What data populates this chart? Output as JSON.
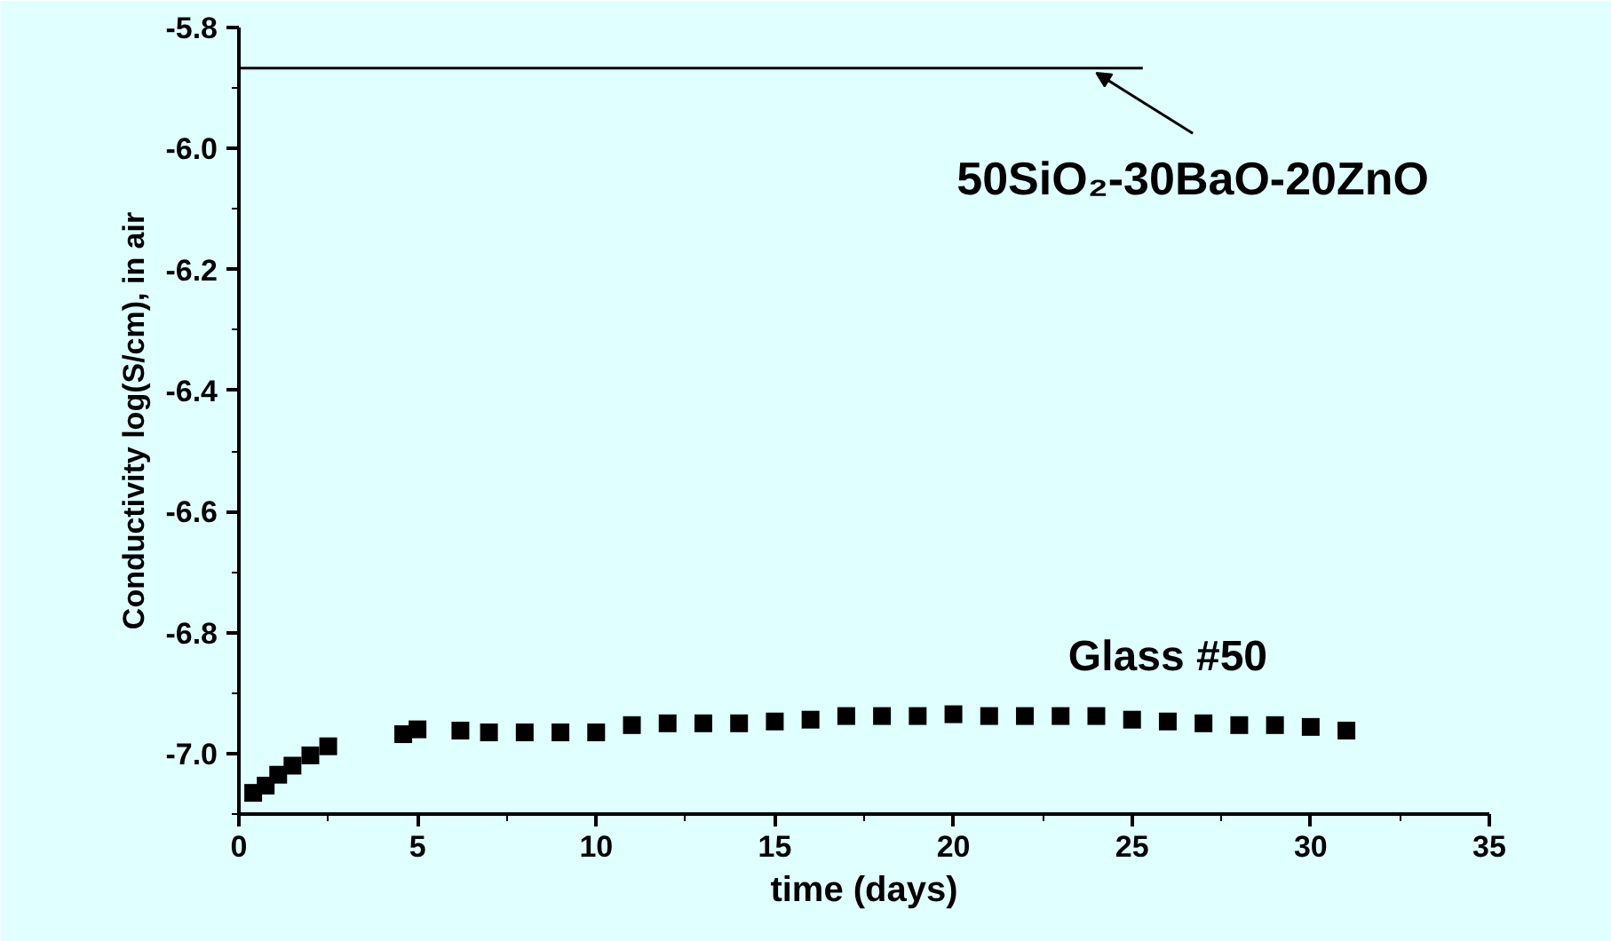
{
  "chart_data": {
    "type": "scatter",
    "xlabel": "time (days)",
    "ylabel": "Conductivity log(S/cm), in air",
    "xlim": [
      0,
      35
    ],
    "xticks": [
      0,
      5,
      10,
      15,
      20,
      25,
      30,
      35
    ],
    "ylim": [
      -7.1,
      -5.8
    ],
    "yticks": [
      {
        "value": -7.0,
        "label": "-7.0"
      },
      -6.8,
      -6.6,
      -6.4,
      -6.2,
      {
        "value": -6.0,
        "label": "-6.0"
      },
      -5.8
    ],
    "grid": false,
    "series": [
      {
        "color": "#000000",
        "marker": "square",
        "x": [
          0.4,
          0.75,
          1.1,
          1.5,
          2.0,
          2.5,
          4.6,
          5.0,
          6.2,
          7,
          8,
          9,
          10,
          11,
          12,
          13,
          14,
          15,
          16,
          17,
          18,
          19,
          20,
          21,
          22,
          23,
          24,
          25,
          26,
          27,
          28,
          29,
          30,
          31
        ],
        "values": [
          -7.065,
          -7.053,
          -7.035,
          -7.02,
          -7.003,
          -6.988,
          -6.968,
          -6.96,
          -6.962,
          -6.965,
          -6.965,
          -6.965,
          -6.965,
          -6.953,
          -6.95,
          -6.95,
          -6.95,
          -6.947,
          -6.944,
          -6.938,
          -6.938,
          -6.938,
          -6.935,
          -6.938,
          -6.938,
          -6.938,
          -6.938,
          -6.944,
          -6.947,
          -6.95,
          -6.953,
          -6.953,
          -6.956,
          -6.962
        ]
      },
      {
        "type": "line",
        "color": "#000000",
        "line_style": "solid",
        "marker": "none",
        "x": [
          0,
          25.3
        ],
        "values": [
          -5.867,
          -5.867
        ]
      }
    ],
    "annotations": [
      {
        "text": "50SiO₂-30BaO-20ZnO",
        "x": 24,
        "y": -5.875
      },
      {
        "text": "Glass #50",
        "x": 26,
        "y": -6.94
      }
    ]
  }
}
